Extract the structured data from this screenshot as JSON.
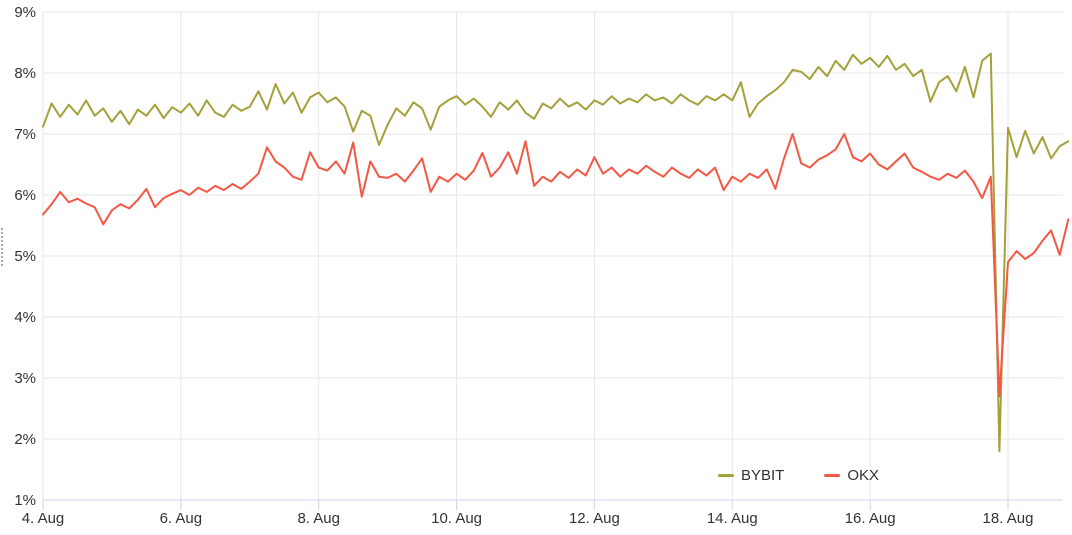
{
  "chart_data": {
    "type": "line",
    "title": "",
    "xlabel": "",
    "ylabel": "",
    "legend_position": "bottom-right",
    "grid": true,
    "x_axis": {
      "unit": "date",
      "start_day": 4.0,
      "step_days": 0.125,
      "month": "Aug",
      "ticks": [
        {
          "day": 4,
          "label": "4. Aug"
        },
        {
          "day": 6,
          "label": "6. Aug"
        },
        {
          "day": 8,
          "label": "8. Aug"
        },
        {
          "day": 10,
          "label": "10. Aug"
        },
        {
          "day": 12,
          "label": "12. Aug"
        },
        {
          "day": 14,
          "label": "14. Aug"
        },
        {
          "day": 16,
          "label": "16. Aug"
        },
        {
          "day": 18,
          "label": "18. Aug"
        }
      ]
    },
    "y_axis": {
      "min": 1,
      "max": 9,
      "ticks": [
        {
          "value": 9,
          "label": "9%"
        },
        {
          "value": 8,
          "label": "8%"
        },
        {
          "value": 7,
          "label": "7%"
        },
        {
          "value": 6,
          "label": "6%"
        },
        {
          "value": 5,
          "label": "5%"
        },
        {
          "value": 4,
          "label": "4%"
        },
        {
          "value": 3,
          "label": "3%"
        },
        {
          "value": 2,
          "label": "2%"
        },
        {
          "value": 1,
          "label": "1%"
        }
      ]
    },
    "colors": {
      "gridline": "#e6e6e6",
      "axis_line": "#ccd6eb",
      "tick_mark": "#ccd6eb",
      "tick_label": "#333333"
    },
    "series": [
      {
        "name": "BYBIT",
        "color": "#a4a03a",
        "values": [
          7.12,
          7.5,
          7.28,
          7.48,
          7.32,
          7.55,
          7.3,
          7.42,
          7.2,
          7.38,
          7.16,
          7.4,
          7.3,
          7.48,
          7.26,
          7.44,
          7.35,
          7.5,
          7.3,
          7.55,
          7.35,
          7.28,
          7.48,
          7.38,
          7.45,
          7.7,
          7.4,
          7.82,
          7.5,
          7.68,
          7.35,
          7.6,
          7.68,
          7.52,
          7.6,
          7.45,
          7.04,
          7.38,
          7.3,
          6.82,
          7.15,
          7.42,
          7.3,
          7.52,
          7.42,
          7.07,
          7.45,
          7.55,
          7.62,
          7.48,
          7.58,
          7.45,
          7.28,
          7.52,
          7.4,
          7.55,
          7.35,
          7.25,
          7.5,
          7.42,
          7.58,
          7.45,
          7.52,
          7.4,
          7.55,
          7.48,
          7.62,
          7.5,
          7.58,
          7.52,
          7.65,
          7.55,
          7.6,
          7.5,
          7.65,
          7.55,
          7.48,
          7.62,
          7.55,
          7.65,
          7.55,
          7.85,
          7.28,
          7.5,
          7.62,
          7.72,
          7.85,
          8.05,
          8.02,
          7.9,
          8.1,
          7.95,
          8.2,
          8.05,
          8.3,
          8.15,
          8.25,
          8.1,
          8.28,
          8.05,
          8.15,
          7.95,
          8.05,
          7.53,
          7.85,
          7.95,
          7.7,
          8.1,
          7.6,
          8.2,
          8.32,
          1.8,
          7.1,
          6.62,
          7.05,
          6.68,
          6.95,
          6.6,
          6.8,
          6.88
        ]
      },
      {
        "name": "OKX",
        "color": "#f25843",
        "values": [
          5.68,
          5.85,
          6.05,
          5.88,
          5.94,
          5.86,
          5.8,
          5.52,
          5.75,
          5.85,
          5.78,
          5.92,
          6.1,
          5.8,
          5.95,
          6.02,
          6.08,
          6.0,
          6.12,
          6.05,
          6.15,
          6.08,
          6.18,
          6.1,
          6.22,
          6.35,
          6.78,
          6.55,
          6.45,
          6.3,
          6.25,
          6.7,
          6.45,
          6.4,
          6.55,
          6.35,
          6.86,
          5.97,
          6.55,
          6.3,
          6.28,
          6.35,
          6.22,
          6.4,
          6.6,
          6.05,
          6.3,
          6.22,
          6.35,
          6.25,
          6.4,
          6.69,
          6.3,
          6.45,
          6.7,
          6.35,
          6.88,
          6.15,
          6.3,
          6.22,
          6.38,
          6.28,
          6.42,
          6.32,
          6.62,
          6.35,
          6.45,
          6.3,
          6.42,
          6.35,
          6.48,
          6.38,
          6.3,
          6.45,
          6.35,
          6.28,
          6.42,
          6.32,
          6.45,
          6.08,
          6.3,
          6.22,
          6.35,
          6.28,
          6.42,
          6.1,
          6.6,
          7.0,
          6.52,
          6.45,
          6.58,
          6.65,
          6.75,
          7.0,
          6.62,
          6.55,
          6.68,
          6.5,
          6.42,
          6.55,
          6.68,
          6.45,
          6.38,
          6.3,
          6.25,
          6.35,
          6.28,
          6.4,
          6.22,
          5.95,
          6.3,
          2.7,
          4.9,
          5.08,
          4.95,
          5.05,
          5.25,
          5.42,
          5.02,
          5.6
        ]
      }
    ]
  }
}
